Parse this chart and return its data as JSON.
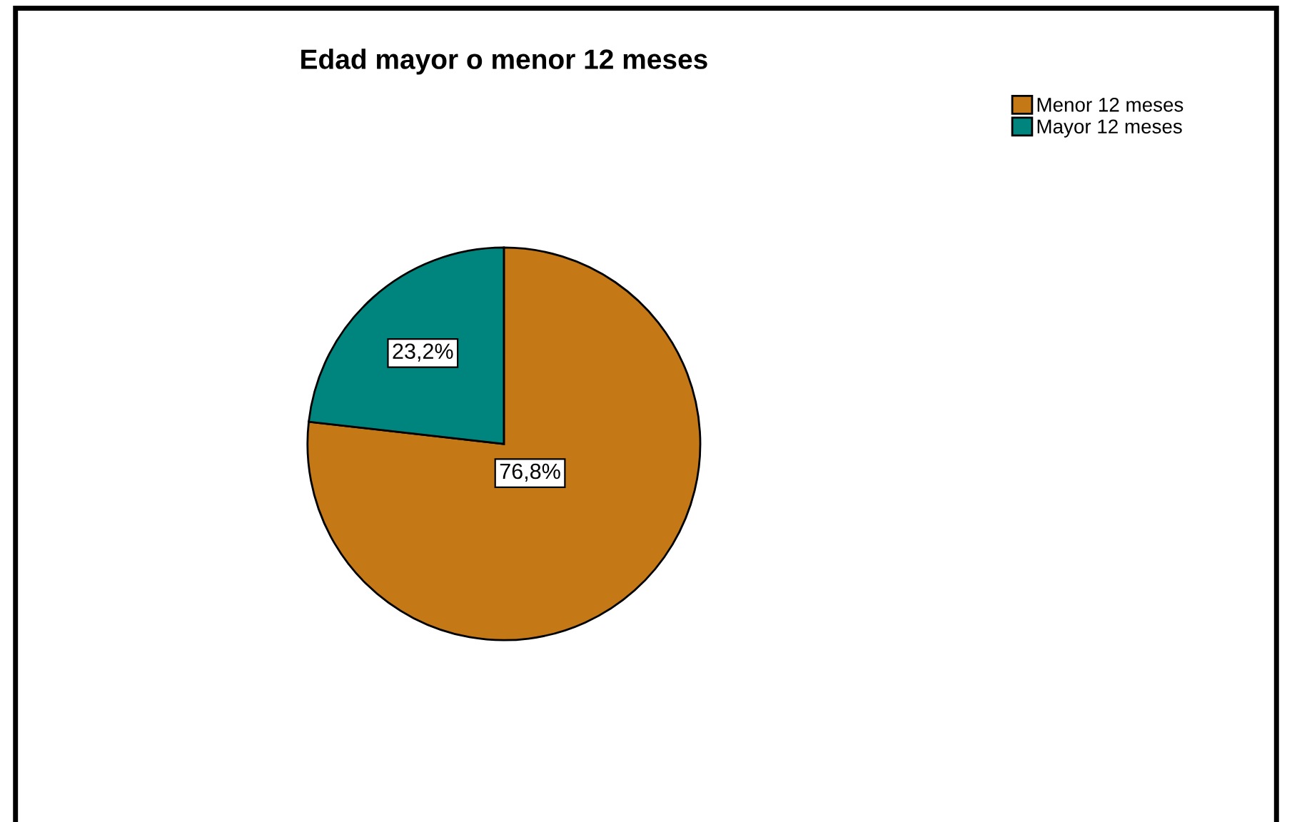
{
  "chart_data": {
    "type": "pie",
    "title": "Edad mayor o menor 12 meses",
    "categories": [
      "Menor 12 meses",
      "Mayor 12 meses"
    ],
    "values": [
      76.8,
      23.2
    ],
    "colors": [
      "#c47816",
      "#00857e"
    ],
    "value_labels": [
      "76,8%",
      "23,2%"
    ],
    "legend": "top right"
  }
}
